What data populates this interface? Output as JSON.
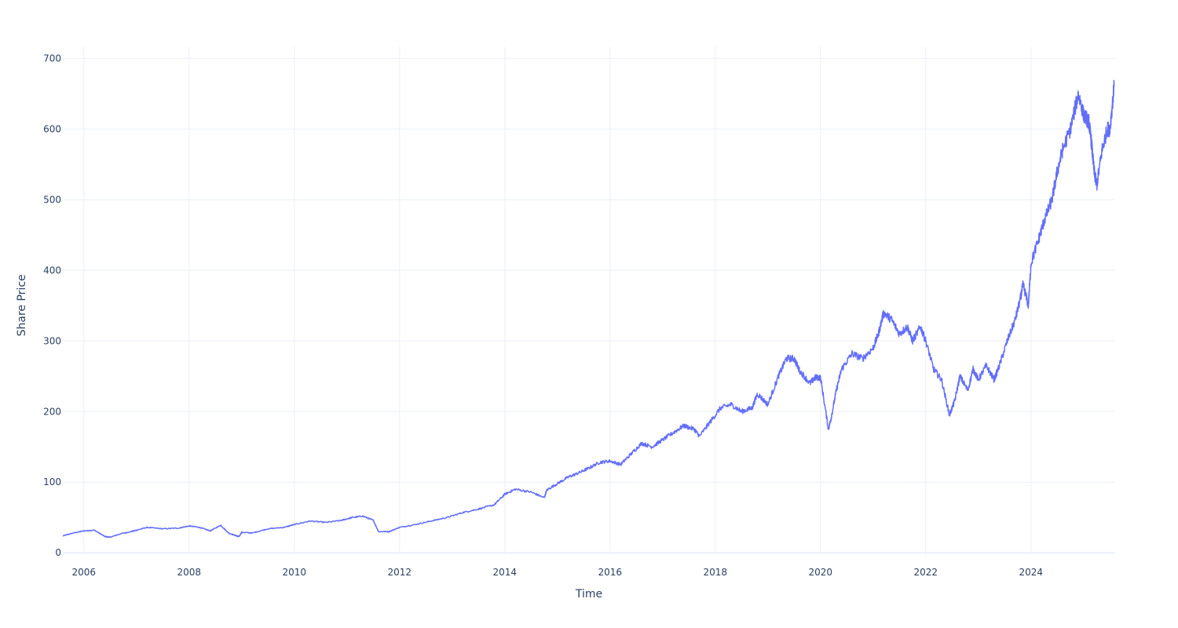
{
  "chart_data": {
    "type": "line",
    "title": "",
    "xlabel": "Time",
    "ylabel": "Share Price",
    "xlim": [
      2005.6,
      2025.6
    ],
    "ylim": [
      -2,
      716
    ],
    "x_ticks": [
      2006,
      2008,
      2010,
      2012,
      2014,
      2016,
      2018,
      2020,
      2022,
      2024
    ],
    "x_tick_labels": [
      "2006",
      "2008",
      "2010",
      "2012",
      "2014",
      "2016",
      "2018",
      "2020",
      "2022",
      "2024"
    ],
    "y_ticks": [
      0,
      100,
      200,
      300,
      400,
      500,
      600,
      700
    ],
    "y_tick_labels": [
      "0",
      "100",
      "200",
      "300",
      "400",
      "500",
      "600",
      "700"
    ],
    "grid": true,
    "legend": "none",
    "colors": {
      "line": "#636efa",
      "grid": "#ebf0f8",
      "zeroline": "#ebf0f8",
      "text": "#2a3f5f"
    },
    "series": [
      {
        "x": [
          2005.6,
          2005.8,
          2006.0,
          2006.2,
          2006.4,
          2006.5,
          2006.7,
          2006.9,
          2007.0,
          2007.2,
          2007.5,
          2007.8,
          2008.0,
          2008.2,
          2008.4,
          2008.6,
          2008.75,
          2008.9,
          2008.95,
          2009.0,
          2009.2,
          2009.5,
          2009.8,
          2010.0,
          2010.3,
          2010.6,
          2010.9,
          2011.1,
          2011.3,
          2011.5,
          2011.6,
          2011.8,
          2012.0,
          2012.3,
          2012.6,
          2012.9,
          2013.2,
          2013.5,
          2013.8,
          2014.0,
          2014.2,
          2014.5,
          2014.75,
          2014.8,
          2015.0,
          2015.2,
          2015.4,
          2015.6,
          2015.8,
          2016.0,
          2016.2,
          2016.4,
          2016.6,
          2016.8,
          2017.0,
          2017.2,
          2017.4,
          2017.6,
          2017.7,
          2017.9,
          2018.1,
          2018.3,
          2018.5,
          2018.7,
          2018.8,
          2019.0,
          2019.2,
          2019.35,
          2019.5,
          2019.6,
          2019.8,
          2019.9,
          2020.0,
          2020.15,
          2020.2,
          2020.3,
          2020.4,
          2020.6,
          2020.8,
          2021.0,
          2021.1,
          2021.2,
          2021.35,
          2021.5,
          2021.65,
          2021.75,
          2021.9,
          2022.0,
          2022.15,
          2022.3,
          2022.45,
          2022.55,
          2022.65,
          2022.8,
          2022.9,
          2023.0,
          2023.15,
          2023.3,
          2023.4,
          2023.55,
          2023.7,
          2023.8,
          2023.85,
          2023.95,
          2024.0,
          2024.15,
          2024.25,
          2024.4,
          2024.5,
          2024.6,
          2024.75,
          2024.9,
          2025.0,
          2025.1,
          2025.15,
          2025.2,
          2025.25,
          2025.35,
          2025.45,
          2025.5,
          2025.58
        ],
        "y": [
          24,
          28,
          31,
          32,
          23,
          22,
          27,
          30,
          32,
          36,
          34,
          35,
          38,
          36,
          31,
          39,
          28,
          24,
          23,
          29,
          28,
          34,
          36,
          40,
          45,
          43,
          46,
          50,
          52,
          46,
          30,
          30,
          36,
          40,
          45,
          50,
          57,
          62,
          68,
          83,
          90,
          86,
          78,
          89,
          98,
          107,
          113,
          120,
          128,
          130,
          125,
          140,
          155,
          150,
          160,
          170,
          180,
          175,
          165,
          185,
          205,
          210,
          200,
          205,
          225,
          210,
          250,
          275,
          275,
          258,
          240,
          248,
          248,
          175,
          190,
          230,
          260,
          282,
          275,
          290,
          310,
          340,
          330,
          310,
          320,
          300,
          320,
          300,
          260,
          245,
          195,
          215,
          250,
          230,
          260,
          245,
          265,
          245,
          265,
          300,
          330,
          360,
          380,
          350,
          410,
          445,
          470,
          500,
          540,
          570,
          600,
          650,
          620,
          610,
          580,
          540,
          520,
          570,
          600,
          600,
          660
        ],
        "line_width": 1.5
      }
    ]
  }
}
